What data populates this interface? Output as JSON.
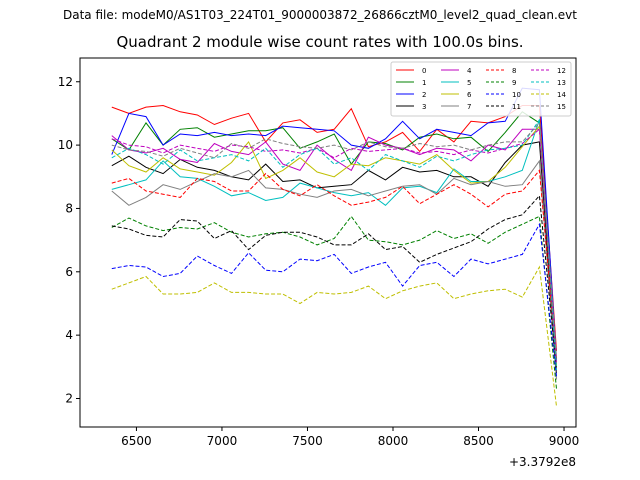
{
  "header": {
    "suptitle": "Data file: modeM0/AS1T03_224T01_9000003872_26866cztM0_level2_quad_clean.evt"
  },
  "chart_data": {
    "type": "line",
    "title": "Quadrant 2 module wise count rates with 100.0s bins.",
    "xlabel": "",
    "ylabel": "",
    "x_offset_label": "+3.3792e8",
    "xlim": [
      6170,
      9070
    ],
    "ylim": [
      1.1,
      12.75
    ],
    "xticks": [
      6500,
      7000,
      7500,
      8000,
      8500,
      9000
    ],
    "xtick_labels": [
      "6500",
      "7000",
      "7500",
      "8000",
      "8500",
      "9000"
    ],
    "yticks": [
      2,
      4,
      6,
      8,
      10,
      12
    ],
    "ytick_labels": [
      "2",
      "4",
      "6",
      "8",
      "10",
      "12"
    ],
    "legend_position": "top-right",
    "x": [
      6356,
      6456,
      6556,
      6656,
      6756,
      6856,
      6956,
      7056,
      7156,
      7256,
      7356,
      7456,
      7556,
      7656,
      7756,
      7856,
      7956,
      8056,
      8156,
      8256,
      8356,
      8456,
      8556,
      8656,
      8756,
      8856,
      8956
    ],
    "series": [
      {
        "name": "0",
        "color": "#ff0000",
        "dash": "solid",
        "values": [
          11.2,
          11.0,
          11.2,
          11.25,
          11.05,
          10.95,
          10.65,
          10.85,
          11.0,
          10.1,
          10.7,
          10.8,
          10.4,
          10.5,
          11.15,
          9.95,
          10.1,
          10.4,
          9.8,
          10.5,
          10.1,
          10.75,
          10.7,
          10.9,
          11.25,
          11.25,
          3.5
        ]
      },
      {
        "name": "1",
        "color": "#008000",
        "dash": "solid",
        "values": [
          10.2,
          9.85,
          10.7,
          10.0,
          10.5,
          10.55,
          10.25,
          10.35,
          10.45,
          10.45,
          10.55,
          9.9,
          10.1,
          10.35,
          9.4,
          10.1,
          10.05,
          9.85,
          10.25,
          10.35,
          10.2,
          10.25,
          9.8,
          10.4,
          11.05,
          10.7,
          3.0
        ]
      },
      {
        "name": "2",
        "color": "#0000ff",
        "dash": "solid",
        "values": [
          9.7,
          11.0,
          10.9,
          10.0,
          10.35,
          10.3,
          10.4,
          10.3,
          10.35,
          10.3,
          10.6,
          10.55,
          10.5,
          10.45,
          10.0,
          9.9,
          10.2,
          10.75,
          10.2,
          10.5,
          10.4,
          10.3,
          10.7,
          10.75,
          11.8,
          11.75,
          3.2
        ]
      },
      {
        "name": "3",
        "color": "#000000",
        "dash": "solid",
        "values": [
          9.35,
          9.65,
          9.3,
          9.1,
          9.55,
          9.3,
          9.2,
          9.0,
          8.9,
          9.4,
          8.85,
          8.9,
          8.65,
          8.7,
          8.75,
          9.2,
          8.9,
          9.3,
          9.15,
          9.2,
          9.0,
          9.0,
          8.7,
          9.45,
          10.0,
          10.1,
          2.8
        ]
      },
      {
        "name": "4",
        "color": "#bf00bf",
        "dash": "solid",
        "values": [
          10.3,
          9.85,
          9.75,
          9.9,
          9.55,
          9.45,
          10.05,
          9.8,
          9.7,
          10.1,
          9.4,
          9.2,
          10.0,
          9.55,
          9.2,
          10.25,
          10.0,
          9.9,
          9.7,
          9.9,
          9.85,
          9.5,
          10.0,
          9.85,
          10.5,
          10.5,
          3.1
        ]
      },
      {
        "name": "5",
        "color": "#00bfbf",
        "dash": "solid",
        "values": [
          8.6,
          8.75,
          8.9,
          9.5,
          9.0,
          8.95,
          8.7,
          8.4,
          8.5,
          8.25,
          8.35,
          8.8,
          8.65,
          8.5,
          8.4,
          8.5,
          8.1,
          8.65,
          8.7,
          8.5,
          9.25,
          8.85,
          8.85,
          9.0,
          9.2,
          10.8,
          3.2
        ]
      },
      {
        "name": "6",
        "color": "#bfbf00",
        "dash": "solid",
        "values": [
          9.85,
          9.35,
          9.15,
          9.6,
          9.25,
          9.15,
          9.05,
          9.45,
          10.1,
          8.95,
          9.2,
          9.6,
          9.15,
          9.0,
          9.4,
          9.35,
          9.6,
          9.5,
          9.4,
          9.7,
          9.2,
          8.8,
          8.85,
          9.3,
          9.95,
          10.6,
          3.0
        ]
      },
      {
        "name": "7",
        "color": "#808080",
        "dash": "solid",
        "values": [
          8.55,
          8.1,
          8.35,
          8.75,
          8.6,
          8.85,
          9.1,
          9.0,
          9.2,
          8.65,
          8.6,
          8.45,
          8.35,
          8.55,
          8.6,
          8.4,
          8.55,
          8.7,
          8.75,
          8.45,
          8.95,
          8.75,
          8.85,
          8.7,
          8.75,
          9.5,
          2.6
        ]
      },
      {
        "name": "8",
        "color": "#ff0000",
        "dash": "dashed",
        "values": [
          8.8,
          8.95,
          8.55,
          8.45,
          8.35,
          8.95,
          8.85,
          8.55,
          8.55,
          9.1,
          8.6,
          8.4,
          8.75,
          8.4,
          8.1,
          8.2,
          8.35,
          8.7,
          8.15,
          8.45,
          8.75,
          8.45,
          8.05,
          8.45,
          8.55,
          9.2,
          3.2
        ]
      },
      {
        "name": "9",
        "color": "#008000",
        "dash": "dashed",
        "values": [
          7.4,
          7.7,
          7.45,
          7.3,
          7.4,
          7.35,
          7.55,
          7.25,
          7.1,
          7.2,
          7.25,
          7.1,
          6.85,
          7.05,
          7.75,
          7.0,
          6.95,
          6.85,
          7.0,
          7.3,
          7.05,
          7.2,
          6.9,
          7.25,
          7.5,
          7.75,
          2.3
        ]
      },
      {
        "name": "10",
        "color": "#0000ff",
        "dash": "dashed",
        "values": [
          6.1,
          6.2,
          6.15,
          5.85,
          5.95,
          6.5,
          6.2,
          5.95,
          6.6,
          6.05,
          6.0,
          6.4,
          6.35,
          6.55,
          5.95,
          6.15,
          6.3,
          5.55,
          6.2,
          6.3,
          5.85,
          6.4,
          6.25,
          6.4,
          6.55,
          7.5,
          2.7
        ]
      },
      {
        "name": "11",
        "color": "#000000",
        "dash": "dashed",
        "values": [
          7.45,
          7.35,
          7.15,
          7.1,
          7.65,
          7.6,
          7.05,
          7.3,
          6.7,
          7.15,
          7.25,
          7.25,
          7.1,
          6.85,
          6.85,
          7.2,
          6.7,
          6.8,
          6.3,
          6.55,
          6.75,
          6.95,
          7.35,
          7.65,
          7.8,
          8.4,
          2.9
        ]
      },
      {
        "name": "12",
        "color": "#bf00bf",
        "dash": "dashed",
        "values": [
          10.2,
          10.0,
          9.95,
          9.75,
          10.0,
          9.9,
          9.8,
          10.0,
          9.95,
          9.8,
          9.85,
          9.75,
          9.9,
          9.6,
          9.9,
          9.8,
          9.85,
          9.9,
          9.75,
          9.8,
          9.7,
          9.85,
          9.75,
          9.9,
          10.05,
          10.5,
          3.1
        ]
      },
      {
        "name": "13",
        "color": "#00bfbf",
        "dash": "dashed",
        "values": [
          9.6,
          9.9,
          9.7,
          9.4,
          9.85,
          9.5,
          9.6,
          9.7,
          9.5,
          9.9,
          9.3,
          9.7,
          9.9,
          9.4,
          9.6,
          9.2,
          9.7,
          9.5,
          9.3,
          9.65,
          9.5,
          9.7,
          9.85,
          9.9,
          10.0,
          10.8,
          2.9
        ]
      },
      {
        "name": "14",
        "color": "#bfbf00",
        "dash": "dashed",
        "values": [
          5.45,
          5.65,
          5.85,
          5.3,
          5.3,
          5.35,
          5.65,
          5.35,
          5.35,
          5.3,
          5.3,
          5.0,
          5.35,
          5.3,
          5.35,
          5.55,
          5.15,
          5.4,
          5.55,
          5.65,
          5.15,
          5.3,
          5.4,
          5.45,
          5.2,
          6.15,
          1.75
        ]
      },
      {
        "name": "15",
        "color": "#808080",
        "dash": "dashed",
        "values": [
          10.0,
          9.85,
          9.8,
          9.65,
          9.9,
          9.75,
          9.6,
          10.05,
          9.9,
          10.2,
          10.05,
          9.95,
          9.9,
          10.0,
          9.85,
          10.1,
          9.95,
          9.9,
          10.05,
          9.95,
          10.0,
          9.85,
          10.0,
          10.1,
          10.1,
          10.7,
          3.3
        ]
      }
    ]
  }
}
